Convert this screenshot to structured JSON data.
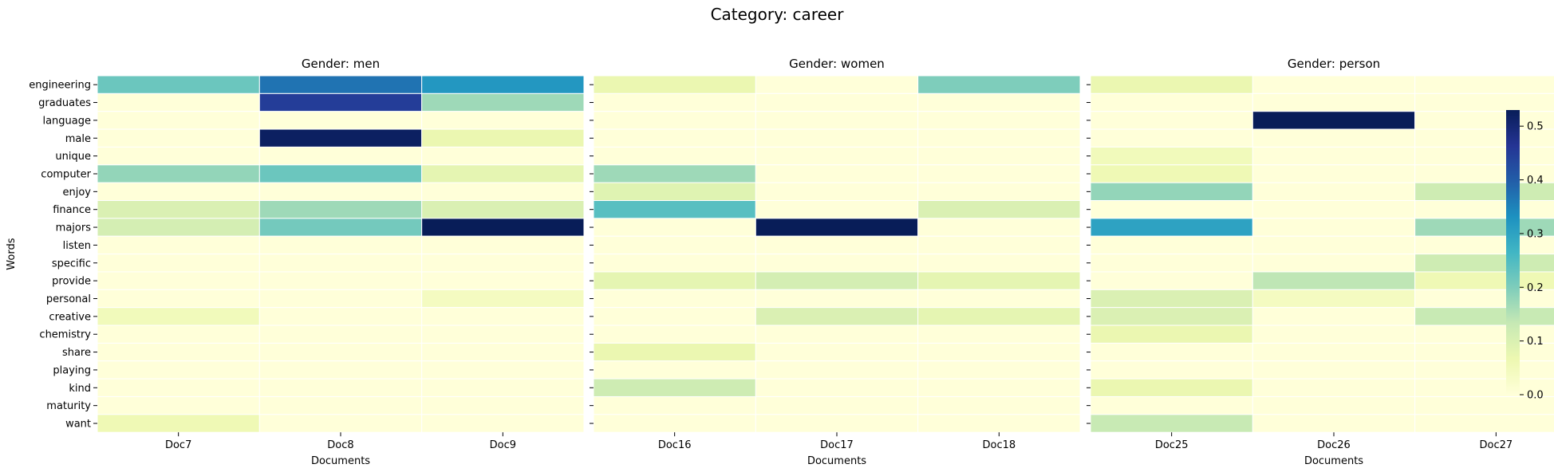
{
  "figure": {
    "title": "Category: career"
  },
  "chart_data": {
    "type": "heatmap",
    "colormap": "YlGnBu",
    "rows": [
      "engineering",
      "graduates",
      "language",
      "male",
      "unique",
      "computer",
      "enjoy",
      "finance",
      "majors",
      "listen",
      "specific",
      "provide",
      "personal",
      "creative",
      "chemistry",
      "share",
      "playing",
      "kind",
      "maturity",
      "want"
    ],
    "ylabel": "Words",
    "xlabel": "Documents",
    "colorbar": {
      "vmin": 0,
      "vmax": 0.53,
      "ticks": [
        "0.0",
        "0.1",
        "0.2",
        "0.3",
        "0.4",
        "0.5"
      ]
    },
    "panels": [
      {
        "title": "Gender: men",
        "columns": [
          "Doc7",
          "Doc8",
          "Doc9"
        ],
        "values": [
          [
            0.22,
            0.37,
            0.32
          ],
          [
            0.0,
            0.45,
            0.17
          ],
          [
            0.0,
            0.0,
            0.0
          ],
          [
            0.0,
            0.52,
            0.07
          ],
          [
            0.0,
            0.0,
            0.0
          ],
          [
            0.18,
            0.22,
            0.08
          ],
          [
            0.0,
            0.0,
            0.0
          ],
          [
            0.1,
            0.17,
            0.1
          ],
          [
            0.11,
            0.21,
            0.53
          ],
          [
            0.0,
            0.0,
            0.0
          ],
          [
            0.0,
            0.0,
            0.0
          ],
          [
            0.0,
            0.0,
            0.0
          ],
          [
            0.0,
            0.0,
            0.04
          ],
          [
            0.05,
            0.0,
            0.0
          ],
          [
            0.0,
            0.0,
            0.0
          ],
          [
            0.0,
            0.0,
            0.0
          ],
          [
            0.0,
            0.0,
            0.0
          ],
          [
            0.0,
            0.0,
            0.0
          ],
          [
            0.0,
            0.0,
            0.0
          ],
          [
            0.06,
            0.0,
            0.0
          ]
        ]
      },
      {
        "title": "Gender: women",
        "columns": [
          "Doc16",
          "Doc17",
          "Doc18"
        ],
        "values": [
          [
            0.07,
            0.0,
            0.2
          ],
          [
            0.0,
            0.0,
            0.0
          ],
          [
            0.0,
            0.0,
            0.0
          ],
          [
            0.0,
            0.0,
            0.0
          ],
          [
            0.0,
            0.0,
            0.0
          ],
          [
            0.17,
            0.0,
            0.0
          ],
          [
            0.09,
            0.0,
            0.0
          ],
          [
            0.24,
            0.0,
            0.1
          ],
          [
            0.0,
            0.53,
            0.0
          ],
          [
            0.0,
            0.0,
            0.0
          ],
          [
            0.0,
            0.0,
            0.0
          ],
          [
            0.08,
            0.11,
            0.08
          ],
          [
            0.0,
            0.0,
            0.0
          ],
          [
            0.0,
            0.1,
            0.08
          ],
          [
            0.0,
            0.0,
            0.0
          ],
          [
            0.07,
            0.0,
            0.0
          ],
          [
            0.0,
            0.0,
            0.0
          ],
          [
            0.12,
            0.0,
            0.0
          ],
          [
            0.0,
            0.0,
            0.0
          ],
          [
            0.0,
            0.0,
            0.0
          ]
        ]
      },
      {
        "title": "Gender: person",
        "columns": [
          "Doc25",
          "Doc26",
          "Doc27"
        ],
        "values": [
          [
            0.07,
            0.0,
            0.0
          ],
          [
            0.0,
            0.0,
            0.0
          ],
          [
            0.0,
            0.53,
            0.0
          ],
          [
            0.0,
            0.0,
            0.0
          ],
          [
            0.05,
            0.0,
            0.0
          ],
          [
            0.06,
            0.0,
            0.0
          ],
          [
            0.18,
            0.0,
            0.12
          ],
          [
            0.0,
            0.0,
            0.0
          ],
          [
            0.3,
            0.0,
            0.17
          ],
          [
            0.0,
            0.0,
            0.0
          ],
          [
            0.0,
            0.0,
            0.12
          ],
          [
            0.0,
            0.14,
            0.06
          ],
          [
            0.1,
            0.04,
            0.0
          ],
          [
            0.1,
            0.0,
            0.13
          ],
          [
            0.07,
            0.0,
            0.0
          ],
          [
            0.0,
            0.0,
            0.0
          ],
          [
            0.0,
            0.0,
            0.0
          ],
          [
            0.07,
            0.0,
            0.0
          ],
          [
            0.0,
            0.0,
            0.0
          ],
          [
            0.13,
            0.0,
            0.0
          ]
        ]
      }
    ]
  }
}
